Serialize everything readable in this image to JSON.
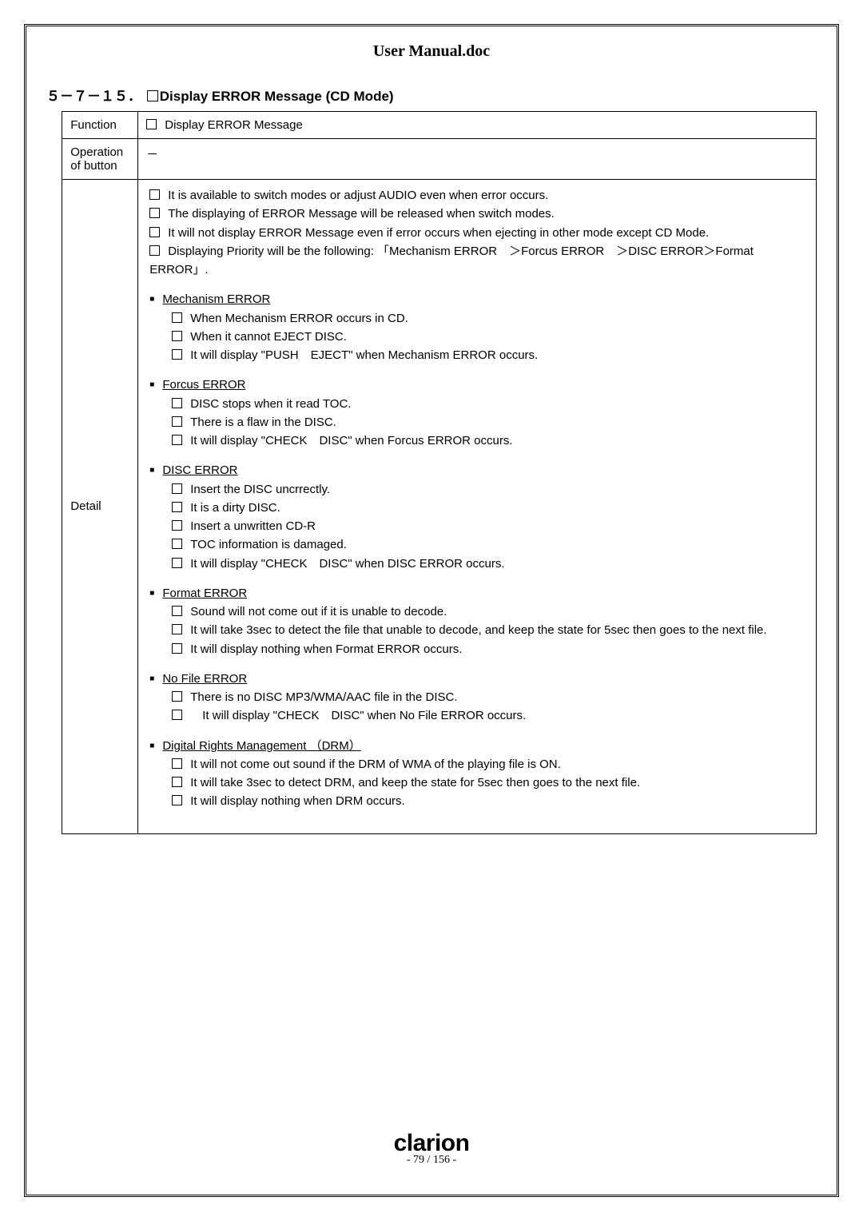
{
  "docTitle": "User Manual.doc",
  "sectionNumber": "５－７－１５．",
  "sectionTitle": "Display ERROR Message (CD Mode)",
  "rows": {
    "function": {
      "label": "Function",
      "text": "Display ERROR Message"
    },
    "operation": {
      "label": "Operation of button",
      "text": "－"
    },
    "detail": {
      "label": "Detail"
    }
  },
  "detail": {
    "intro": [
      "It is available to switch modes or adjust AUDIO even when error occurs.",
      "The displaying of ERROR Message will be released when switch modes.",
      "It will not display ERROR Message even if error occurs when ejecting in other mode except CD Mode.",
      "Displaying Priority will be the following:  「Mechanism ERROR　＞Forcus ERROR　＞DISC ERROR＞Format ERROR」."
    ],
    "sections": [
      {
        "title": "Mechanism ERROR",
        "items": [
          "When Mechanism ERROR occurs in CD.",
          "When it cannot EJECT DISC.",
          "It will display \"PUSH　EJECT\" when Mechanism ERROR occurs."
        ]
      },
      {
        "title": "Forcus ERROR",
        "items": [
          "DISC stops when it read TOC.",
          "There is a flaw in the DISC.",
          "It will display \"CHECK　DISC\" when Forcus ERROR occurs."
        ]
      },
      {
        "title": "DISC ERROR",
        "items": [
          "Insert the DISC uncrrectly.",
          "It is a dirty DISC.",
          "Insert a unwritten CD-R",
          "TOC information is damaged.",
          "It will display \"CHECK　DISC\" when DISC ERROR occurs."
        ]
      },
      {
        "title": "Format ERROR",
        "items": [
          "Sound will not come out if it is unable to decode.",
          "It will take 3sec to detect the file that unable to decode, and keep the state for 5sec then goes to the next file.",
          "It will display nothing when Format ERROR occurs."
        ]
      },
      {
        "title": "No File ERROR",
        "items": [
          "There is no DISC MP3/WMA/AAC file in the DISC.",
          "　It will display \"CHECK　DISC\" when No File ERROR occurs."
        ]
      },
      {
        "title": "Digital Rights Management （DRM）",
        "items": [
          "It will not come out sound if the DRM of WMA of the playing file is ON.",
          "It will take 3sec to detect DRM, and keep the state for 5sec then goes to the next file.",
          "It will display nothing when DRM occurs."
        ]
      }
    ]
  },
  "footer": {
    "logoText": "clarion",
    "pageText": "- 79 / 156 -"
  }
}
